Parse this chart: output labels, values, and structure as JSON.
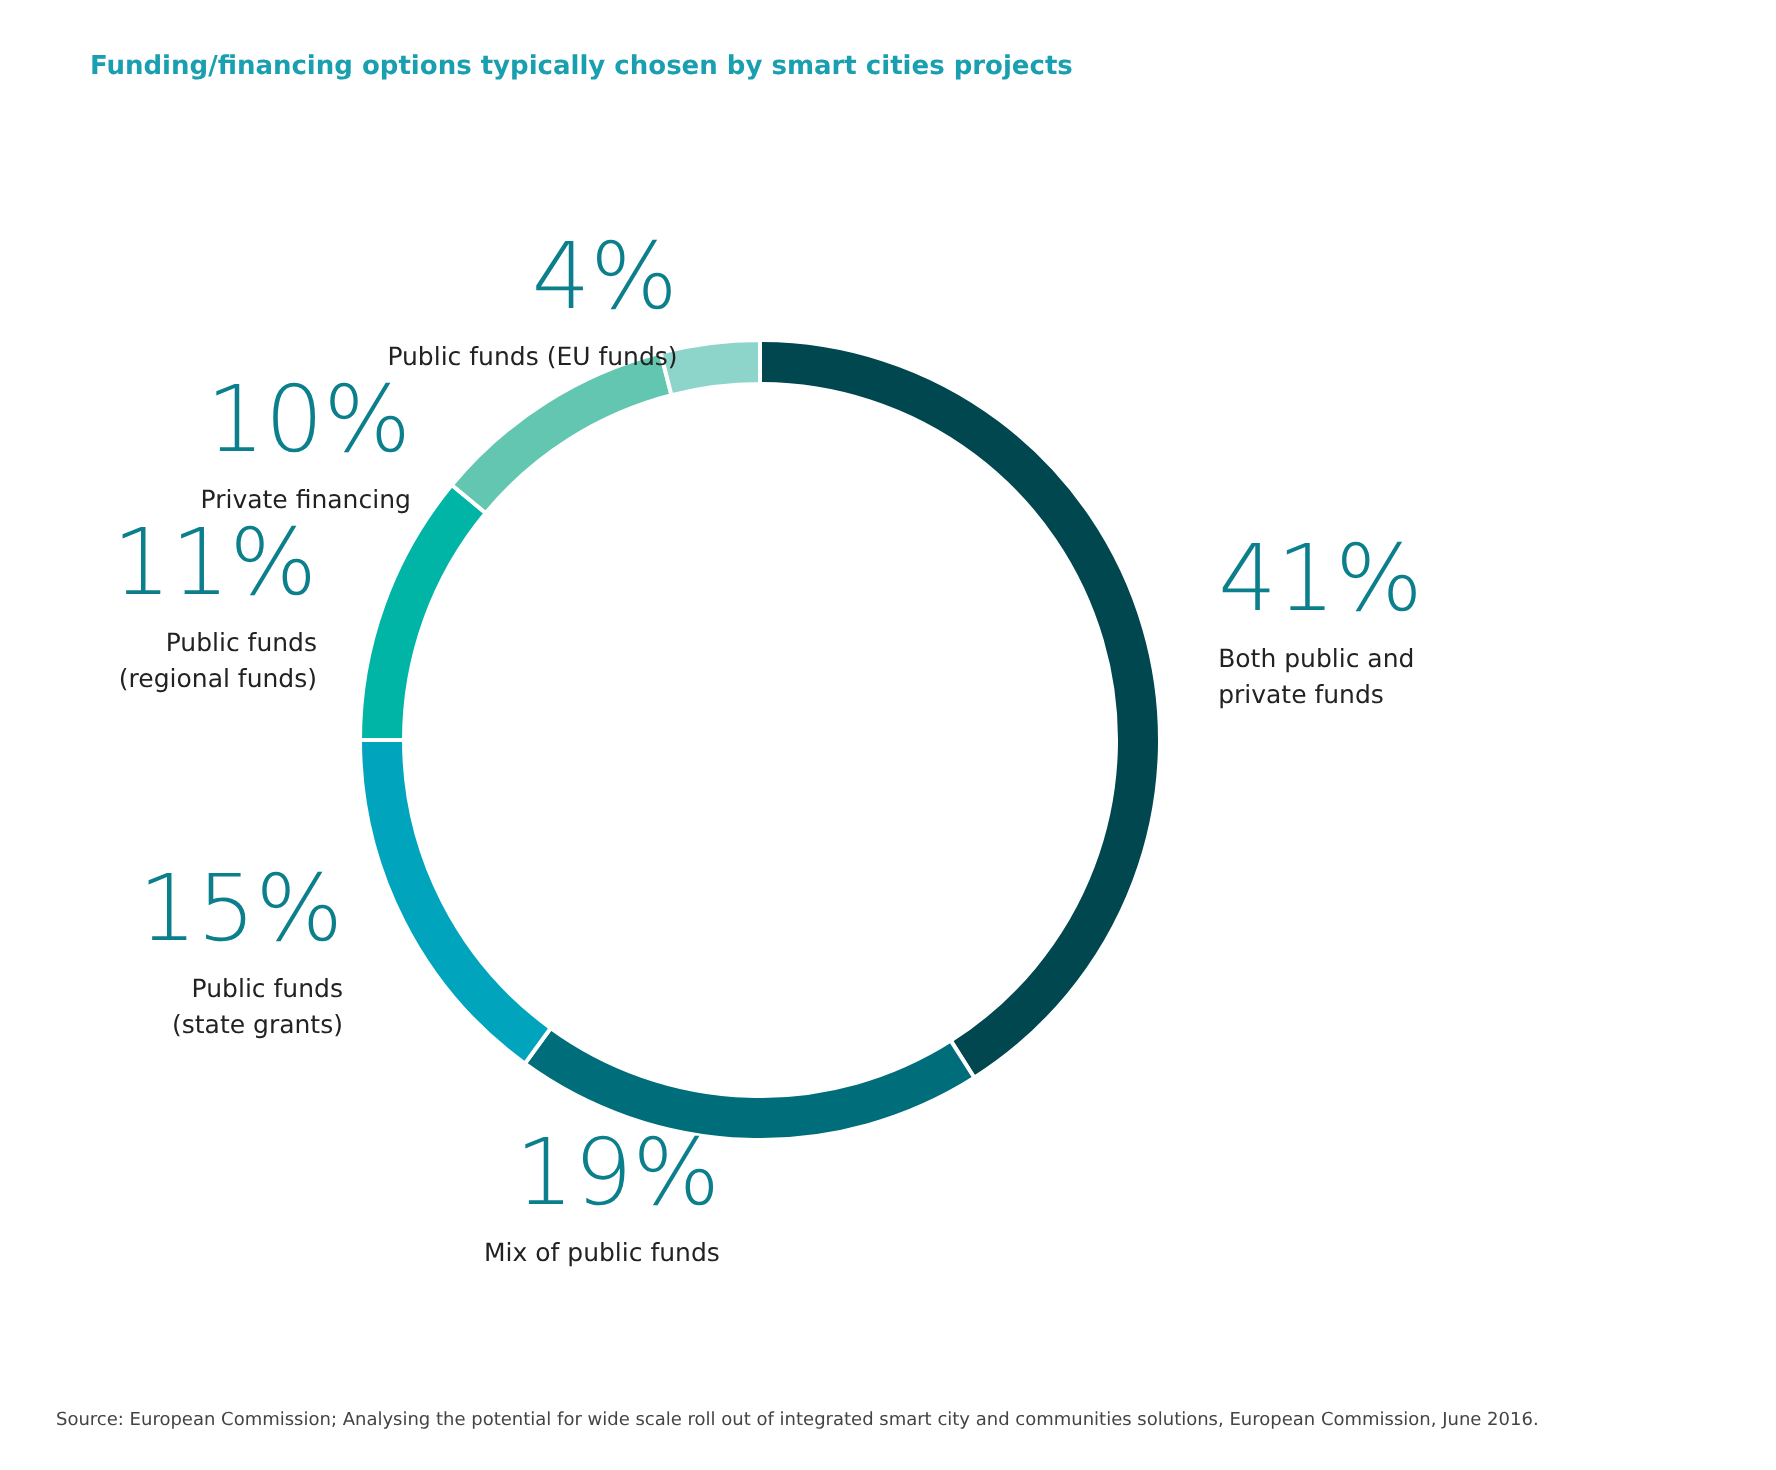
{
  "chart_data": {
    "type": "donut",
    "title": "Funding/financing options typically chosen by smart cities projects",
    "categories": [
      "Both public and\nprivate funds",
      "Mix of public funds",
      "Public funds\n(state grants)",
      "Public funds\n(regional funds)",
      "Private financing",
      "Public funds (EU funds)"
    ],
    "values": [
      41,
      19,
      15,
      11,
      10,
      4
    ],
    "value_labels": [
      "41%",
      "19%",
      "15%",
      "11%",
      "10%",
      "4%"
    ],
    "colors": [
      "#00474f",
      "#006e7a",
      "#00a5bd",
      "#00b5a5",
      "#63c6b0",
      "#8dd5cb"
    ],
    "legend": false,
    "annotations": [
      "Source: European Commission; Analysing the potential for wide scale roll out of integrated smart city and communities solutions, European Commission, June 2016."
    ]
  }
}
